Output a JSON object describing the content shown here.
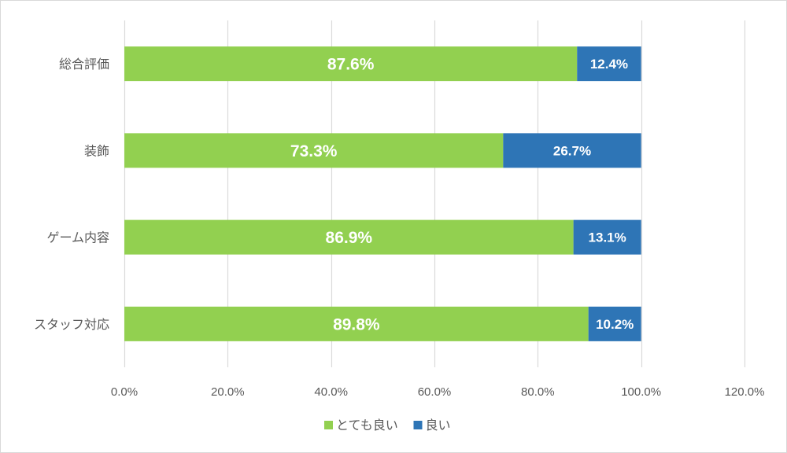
{
  "chart_data": {
    "type": "bar",
    "orientation": "horizontal",
    "stacked": true,
    "categories": [
      "総合評価",
      "装飾",
      "ゲーム内容",
      "スタッフ対応"
    ],
    "series": [
      {
        "name": "とても良い",
        "color": "#92d050",
        "values": [
          87.6,
          73.3,
          86.9,
          89.8
        ],
        "labels": [
          "87.6%",
          "73.3%",
          "86.9%",
          "89.8%"
        ]
      },
      {
        "name": "良い",
        "color": "#2e75b6",
        "values": [
          12.4,
          26.7,
          13.1,
          10.2
        ],
        "labels": [
          "12.4%",
          "26.7%",
          "13.1%",
          "10.2%"
        ]
      }
    ],
    "x_ticks": [
      0,
      20,
      40,
      60,
      80,
      100,
      120
    ],
    "x_tick_labels": [
      "0.0%",
      "20.0%",
      "40.0%",
      "60.0%",
      "80.0%",
      "100.0%",
      "120.0%"
    ],
    "xlim": [
      0,
      120
    ],
    "grid": true,
    "legend_position": "bottom",
    "title": "",
    "xlabel": "",
    "ylabel": ""
  }
}
